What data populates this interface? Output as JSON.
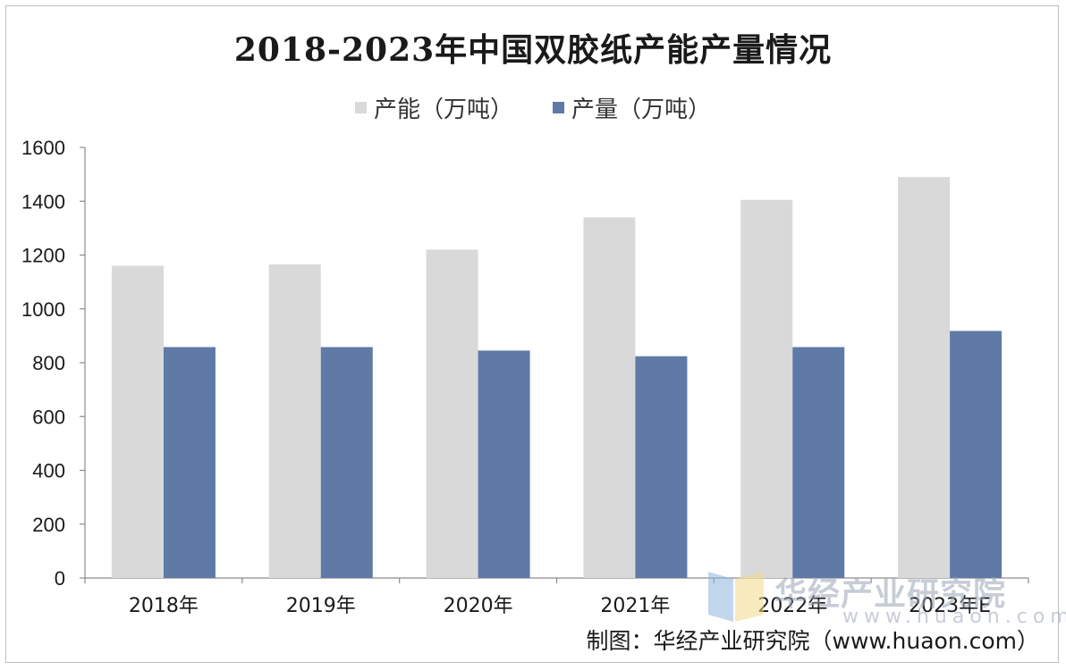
{
  "chart_data": {
    "type": "bar",
    "title": "2018-2023年中国双胶纸产能产量情况",
    "categories": [
      "2018年",
      "2019年",
      "2020年",
      "2021年",
      "2022年",
      "2023年E"
    ],
    "series": [
      {
        "name": "产能（万吨）",
        "color": "#d9d9d9",
        "values": [
          1160,
          1165,
          1220,
          1340,
          1405,
          1490
        ]
      },
      {
        "name": "产量（万吨）",
        "color": "#5f7aa6",
        "values": [
          858,
          858,
          845,
          824,
          858,
          918
        ]
      }
    ],
    "ylim": [
      0,
      1600
    ],
    "yticks": [
      0,
      200,
      400,
      600,
      800,
      1000,
      1200,
      1400,
      1600
    ],
    "grid": false,
    "legend_position": "top-center",
    "xlabel": "",
    "ylabel": ""
  },
  "legend": {
    "capacity_label": "产能（万吨）",
    "output_label": "产量（万吨）"
  },
  "source_text": "制图：华经产业研究院（www.huaon.com）",
  "watermark": {
    "text": "华经产业研究院",
    "url": "www.huaon.com"
  }
}
